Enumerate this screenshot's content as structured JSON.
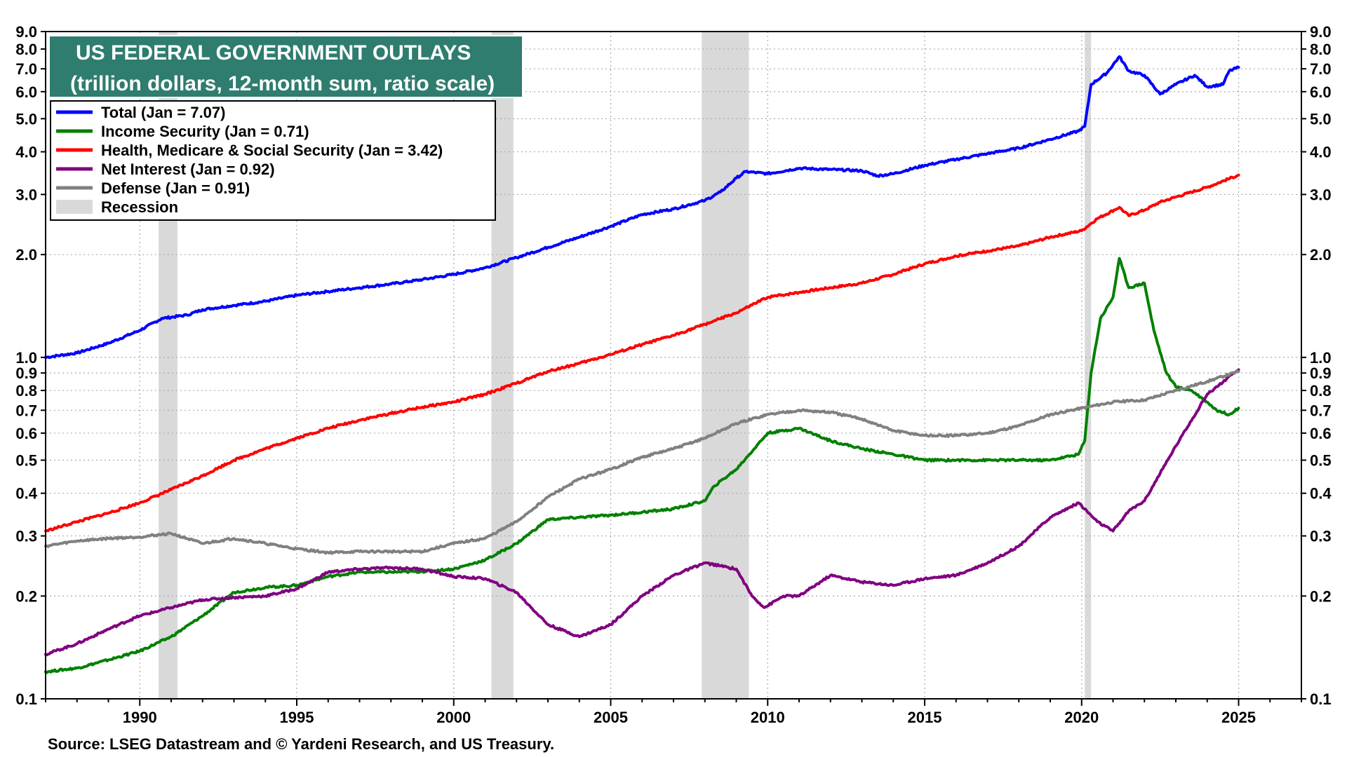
{
  "chart_data": {
    "type": "line",
    "title": "US FEDERAL GOVERNMENT OUTLAYS",
    "subtitle": "(trillion dollars, 12-month sum, ratio scale)",
    "source": "Source: LSEG Datastream and © Yardeni Research, and US Treasury.",
    "y_scale": "log",
    "ylim": [
      0.1,
      9.0
    ],
    "xlim": [
      1987.0,
      2027.0
    ],
    "y_ticks": [
      "0.1",
      "0.2",
      "0.3",
      "0.4",
      "0.5",
      "0.6",
      "0.7",
      "0.8",
      "0.9",
      "1.0",
      "2.0",
      "3.0",
      "4.0",
      "5.0",
      "6.0",
      "7.0",
      "8.0",
      "9.0"
    ],
    "x_ticks": [
      "1990",
      "1995",
      "2000",
      "2005",
      "2010",
      "2015",
      "2020",
      "2025"
    ],
    "colors": {
      "title_bg": "#2e7d6e",
      "recession": "#d9d9d9",
      "total": "#0000ff",
      "income": "#008000",
      "health": "#ff0000",
      "interest": "#800080",
      "defense": "#808080",
      "grid": "#aaaaaa"
    },
    "recessions": [
      [
        1990.6,
        1991.2
      ],
      [
        2001.2,
        2001.9
      ],
      [
        2007.9,
        2009.4
      ],
      [
        2020.1,
        2020.3
      ]
    ],
    "legend": [
      {
        "label": "Total  (Jan = 7.07)",
        "color": "#0000ff",
        "kind": "line"
      },
      {
        "label": "Income Security (Jan = 0.71)",
        "color": "#008000",
        "kind": "line"
      },
      {
        "label": "Health, Medicare & Social Security  (Jan = 3.42)",
        "color": "#ff0000",
        "kind": "line"
      },
      {
        "label": "Net Interest (Jan = 0.92)",
        "color": "#800080",
        "kind": "line"
      },
      {
        "label": "Defense (Jan = 0.91)",
        "color": "#808080",
        "kind": "line"
      },
      {
        "label": "Recession",
        "color": "#d9d9d9",
        "kind": "box"
      }
    ],
    "series": [
      {
        "name": "Total",
        "color": "#0000ff",
        "points": [
          [
            1987.0,
            1.0
          ],
          [
            1988.0,
            1.03
          ],
          [
            1989.0,
            1.1
          ],
          [
            1990.0,
            1.2
          ],
          [
            1990.7,
            1.3
          ],
          [
            1991.5,
            1.33
          ],
          [
            1992.0,
            1.38
          ],
          [
            1993.0,
            1.42
          ],
          [
            1994.0,
            1.46
          ],
          [
            1995.0,
            1.52
          ],
          [
            1996.0,
            1.56
          ],
          [
            1997.0,
            1.6
          ],
          [
            1998.0,
            1.64
          ],
          [
            1999.0,
            1.69
          ],
          [
            2000.0,
            1.75
          ],
          [
            2001.0,
            1.83
          ],
          [
            2002.0,
            1.96
          ],
          [
            2003.0,
            2.1
          ],
          [
            2004.0,
            2.25
          ],
          [
            2005.0,
            2.42
          ],
          [
            2006.0,
            2.62
          ],
          [
            2007.0,
            2.72
          ],
          [
            2008.0,
            2.88
          ],
          [
            2008.5,
            3.05
          ],
          [
            2009.0,
            3.35
          ],
          [
            2009.3,
            3.5
          ],
          [
            2010.0,
            3.45
          ],
          [
            2011.0,
            3.58
          ],
          [
            2012.0,
            3.55
          ],
          [
            2013.0,
            3.52
          ],
          [
            2013.5,
            3.4
          ],
          [
            2014.0,
            3.45
          ],
          [
            2015.0,
            3.65
          ],
          [
            2016.0,
            3.8
          ],
          [
            2017.0,
            3.95
          ],
          [
            2018.0,
            4.1
          ],
          [
            2019.0,
            4.35
          ],
          [
            2019.9,
            4.6
          ],
          [
            2020.1,
            4.75
          ],
          [
            2020.3,
            6.3
          ],
          [
            2020.8,
            6.8
          ],
          [
            2021.2,
            7.6
          ],
          [
            2021.5,
            6.9
          ],
          [
            2022.0,
            6.7
          ],
          [
            2022.5,
            5.9
          ],
          [
            2023.0,
            6.3
          ],
          [
            2023.6,
            6.7
          ],
          [
            2024.0,
            6.2
          ],
          [
            2024.5,
            6.3
          ],
          [
            2024.7,
            6.9
          ],
          [
            2025.0,
            7.07
          ]
        ]
      },
      {
        "name": "Income Security",
        "color": "#008000",
        "points": [
          [
            1987.0,
            0.12
          ],
          [
            1988.0,
            0.123
          ],
          [
            1989.0,
            0.13
          ],
          [
            1990.0,
            0.138
          ],
          [
            1991.0,
            0.152
          ],
          [
            1992.0,
            0.175
          ],
          [
            1993.0,
            0.205
          ],
          [
            1994.0,
            0.212
          ],
          [
            1995.0,
            0.215
          ],
          [
            1996.0,
            0.228
          ],
          [
            1997.0,
            0.235
          ],
          [
            1998.0,
            0.235
          ],
          [
            1999.0,
            0.236
          ],
          [
            2000.0,
            0.24
          ],
          [
            2001.0,
            0.255
          ],
          [
            2002.0,
            0.285
          ],
          [
            2003.0,
            0.335
          ],
          [
            2004.0,
            0.34
          ],
          [
            2005.0,
            0.345
          ],
          [
            2006.0,
            0.352
          ],
          [
            2007.0,
            0.36
          ],
          [
            2008.0,
            0.38
          ],
          [
            2008.3,
            0.42
          ],
          [
            2009.0,
            0.47
          ],
          [
            2010.0,
            0.6
          ],
          [
            2011.0,
            0.62
          ],
          [
            2012.0,
            0.57
          ],
          [
            2013.0,
            0.54
          ],
          [
            2014.0,
            0.52
          ],
          [
            2015.0,
            0.5
          ],
          [
            2016.0,
            0.5
          ],
          [
            2017.0,
            0.5
          ],
          [
            2018.0,
            0.5
          ],
          [
            2019.0,
            0.5
          ],
          [
            2019.9,
            0.52
          ],
          [
            2020.1,
            0.57
          ],
          [
            2020.3,
            0.9
          ],
          [
            2020.6,
            1.3
          ],
          [
            2021.0,
            1.5
          ],
          [
            2021.2,
            1.95
          ],
          [
            2021.5,
            1.6
          ],
          [
            2022.0,
            1.65
          ],
          [
            2022.3,
            1.2
          ],
          [
            2022.7,
            0.9
          ],
          [
            2023.0,
            0.82
          ],
          [
            2023.5,
            0.8
          ],
          [
            2024.0,
            0.74
          ],
          [
            2024.3,
            0.7
          ],
          [
            2024.7,
            0.68
          ],
          [
            2025.0,
            0.71
          ]
        ]
      },
      {
        "name": "Health, Medicare & Social Security",
        "color": "#ff0000",
        "points": [
          [
            1987.0,
            0.31
          ],
          [
            1988.0,
            0.33
          ],
          [
            1989.0,
            0.35
          ],
          [
            1990.0,
            0.375
          ],
          [
            1991.0,
            0.41
          ],
          [
            1992.0,
            0.45
          ],
          [
            1993.0,
            0.5
          ],
          [
            1994.0,
            0.54
          ],
          [
            1995.0,
            0.58
          ],
          [
            1996.0,
            0.62
          ],
          [
            1997.0,
            0.655
          ],
          [
            1998.0,
            0.685
          ],
          [
            1999.0,
            0.715
          ],
          [
            2000.0,
            0.74
          ],
          [
            2001.0,
            0.78
          ],
          [
            2002.0,
            0.84
          ],
          [
            2003.0,
            0.91
          ],
          [
            2004.0,
            0.96
          ],
          [
            2005.0,
            1.02
          ],
          [
            2006.0,
            1.09
          ],
          [
            2007.0,
            1.16
          ],
          [
            2008.0,
            1.25
          ],
          [
            2009.0,
            1.35
          ],
          [
            2010.0,
            1.5
          ],
          [
            2011.0,
            1.55
          ],
          [
            2012.0,
            1.6
          ],
          [
            2013.0,
            1.65
          ],
          [
            2014.0,
            1.75
          ],
          [
            2015.0,
            1.88
          ],
          [
            2016.0,
            1.98
          ],
          [
            2017.0,
            2.05
          ],
          [
            2018.0,
            2.12
          ],
          [
            2019.0,
            2.25
          ],
          [
            2020.0,
            2.35
          ],
          [
            2020.5,
            2.55
          ],
          [
            2021.2,
            2.75
          ],
          [
            2021.5,
            2.6
          ],
          [
            2022.0,
            2.7
          ],
          [
            2022.5,
            2.85
          ],
          [
            2023.0,
            2.95
          ],
          [
            2024.0,
            3.15
          ],
          [
            2025.0,
            3.42
          ]
        ]
      },
      {
        "name": "Net Interest",
        "color": "#800080",
        "points": [
          [
            1987.0,
            0.135
          ],
          [
            1988.0,
            0.145
          ],
          [
            1989.0,
            0.16
          ],
          [
            1990.0,
            0.175
          ],
          [
            1991.0,
            0.185
          ],
          [
            1992.0,
            0.195
          ],
          [
            1993.0,
            0.198
          ],
          [
            1994.0,
            0.2
          ],
          [
            1995.0,
            0.21
          ],
          [
            1996.0,
            0.235
          ],
          [
            1997.0,
            0.24
          ],
          [
            1998.0,
            0.242
          ],
          [
            1999.0,
            0.24
          ],
          [
            2000.0,
            0.228
          ],
          [
            2001.0,
            0.225
          ],
          [
            2002.0,
            0.205
          ],
          [
            2003.0,
            0.165
          ],
          [
            2004.0,
            0.152
          ],
          [
            2005.0,
            0.165
          ],
          [
            2006.0,
            0.2
          ],
          [
            2007.0,
            0.23
          ],
          [
            2008.0,
            0.25
          ],
          [
            2008.5,
            0.245
          ],
          [
            2009.0,
            0.24
          ],
          [
            2009.5,
            0.2
          ],
          [
            2009.9,
            0.185
          ],
          [
            2010.5,
            0.2
          ],
          [
            2011.0,
            0.2
          ],
          [
            2012.0,
            0.23
          ],
          [
            2013.0,
            0.22
          ],
          [
            2014.0,
            0.215
          ],
          [
            2015.0,
            0.225
          ],
          [
            2016.0,
            0.23
          ],
          [
            2017.0,
            0.25
          ],
          [
            2018.0,
            0.28
          ],
          [
            2019.0,
            0.34
          ],
          [
            2019.9,
            0.375
          ],
          [
            2020.5,
            0.33
          ],
          [
            2021.0,
            0.31
          ],
          [
            2021.5,
            0.355
          ],
          [
            2022.0,
            0.38
          ],
          [
            2023.0,
            0.55
          ],
          [
            2024.0,
            0.78
          ],
          [
            2025.0,
            0.92
          ]
        ]
      },
      {
        "name": "Defense",
        "color": "#808080",
        "points": [
          [
            1987.0,
            0.28
          ],
          [
            1988.0,
            0.29
          ],
          [
            1989.0,
            0.295
          ],
          [
            1990.0,
            0.298
          ],
          [
            1991.0,
            0.305
          ],
          [
            1992.0,
            0.285
          ],
          [
            1993.0,
            0.295
          ],
          [
            1994.0,
            0.285
          ],
          [
            1995.0,
            0.275
          ],
          [
            1996.0,
            0.268
          ],
          [
            1997.0,
            0.27
          ],
          [
            1998.0,
            0.27
          ],
          [
            1999.0,
            0.27
          ],
          [
            2000.0,
            0.285
          ],
          [
            2001.0,
            0.295
          ],
          [
            2002.0,
            0.33
          ],
          [
            2003.0,
            0.39
          ],
          [
            2004.0,
            0.44
          ],
          [
            2005.0,
            0.47
          ],
          [
            2006.0,
            0.51
          ],
          [
            2007.0,
            0.54
          ],
          [
            2008.0,
            0.58
          ],
          [
            2009.0,
            0.64
          ],
          [
            2010.0,
            0.68
          ],
          [
            2011.0,
            0.7
          ],
          [
            2012.0,
            0.69
          ],
          [
            2013.0,
            0.66
          ],
          [
            2014.0,
            0.61
          ],
          [
            2015.0,
            0.59
          ],
          [
            2016.0,
            0.59
          ],
          [
            2017.0,
            0.6
          ],
          [
            2018.0,
            0.63
          ],
          [
            2019.0,
            0.68
          ],
          [
            2020.0,
            0.71
          ],
          [
            2021.0,
            0.74
          ],
          [
            2022.0,
            0.75
          ],
          [
            2023.0,
            0.8
          ],
          [
            2024.0,
            0.85
          ],
          [
            2025.0,
            0.91
          ]
        ]
      }
    ]
  }
}
